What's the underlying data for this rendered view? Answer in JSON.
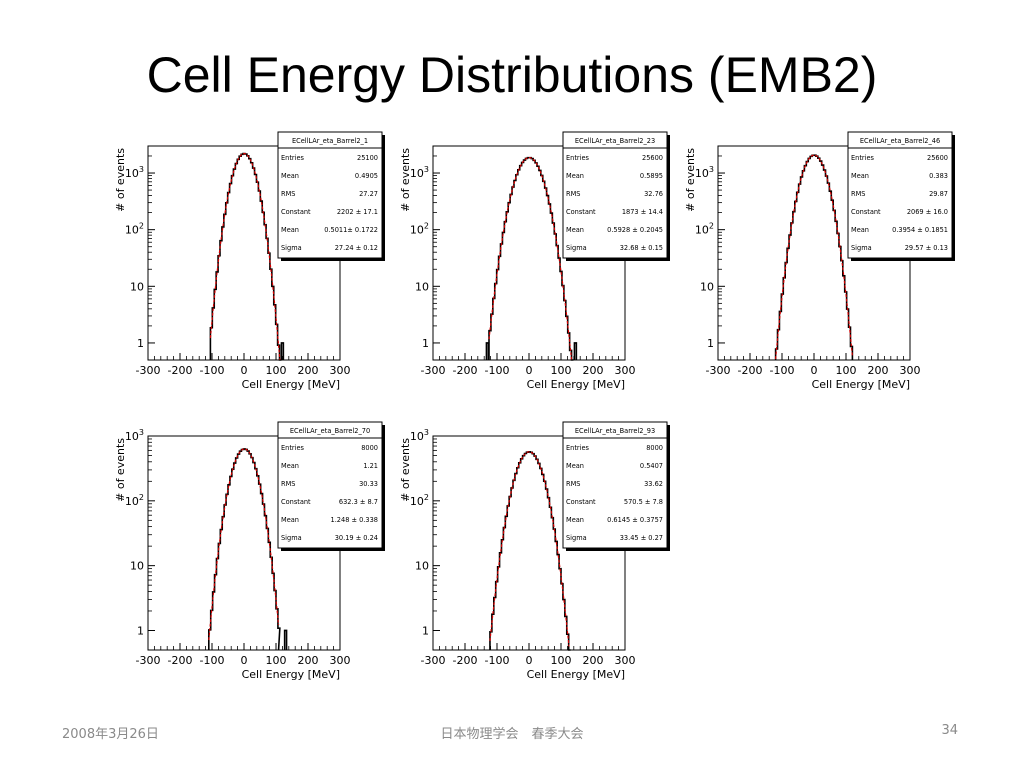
{
  "slide": {
    "title": "Cell Energy Distributions (EMB2)",
    "footer_date": "2008年3月26日",
    "footer_center": "日本物理学会　春季大会",
    "page_number": "34"
  },
  "chart_data": [
    {
      "type": "histogram",
      "xlabel": "Cell Energy [MeV]",
      "ylabel": "# of events",
      "yscale": "log",
      "xlim": [
        -300,
        300
      ],
      "ylim": [
        0.5,
        3000
      ],
      "xticks": [
        "-300",
        "-200",
        "-100",
        "0",
        "100",
        "200",
        "300"
      ],
      "yticks": [
        "1",
        "10",
        "10²",
        "10³"
      ],
      "stats": {
        "name": "ECellLAr_eta_Barrel2_1",
        "rows": [
          {
            "label": "Entries",
            "value": "25100"
          },
          {
            "label": "Mean",
            "value": "0.4905"
          },
          {
            "label": "RMS",
            "value": "27.27"
          },
          {
            "label": "Constant",
            "value": "2202 ± 17.1"
          },
          {
            "label": "Mean",
            "value": "0.5011± 0.1722"
          },
          {
            "label": "Sigma",
            "value": "27.24 ± 0.12"
          }
        ]
      },
      "fit": {
        "constant": 2202,
        "mean": 0.5011,
        "sigma": 27.24
      },
      "entries": 25100,
      "range": [
        -105,
        112
      ],
      "outliers": [
        {
          "x": 120,
          "count": 1
        }
      ]
    },
    {
      "type": "histogram",
      "xlabel": "Cell Energy [MeV]",
      "ylabel": "# of events",
      "yscale": "log",
      "xlim": [
        -300,
        300
      ],
      "ylim": [
        0.5,
        3000
      ],
      "xticks": [
        "-300",
        "-200",
        "-100",
        "0",
        "100",
        "200",
        "300"
      ],
      "yticks": [
        "1",
        "10",
        "10²",
        "10³"
      ],
      "stats": {
        "name": "ECellLAr_eta_Barrel2_23",
        "rows": [
          {
            "label": "Entries",
            "value": "25600"
          },
          {
            "label": "Mean",
            "value": "0.5895"
          },
          {
            "label": "RMS",
            "value": "32.76"
          },
          {
            "label": "Constant",
            "value": "1873 ± 14.4"
          },
          {
            "label": "Mean",
            "value": "0.5928 ± 0.2045"
          },
          {
            "label": "Sigma",
            "value": "32.68 ± 0.15"
          }
        ]
      },
      "fit": {
        "constant": 1873,
        "mean": 0.5928,
        "sigma": 32.68
      },
      "entries": 25600,
      "range": [
        -125,
        135
      ],
      "outliers": [
        {
          "x": -130,
          "count": 1
        },
        {
          "x": 145,
          "count": 1
        }
      ]
    },
    {
      "type": "histogram",
      "xlabel": "Cell Energy [MeV]",
      "ylabel": "# of events",
      "yscale": "log",
      "xlim": [
        -300,
        300
      ],
      "ylim": [
        0.5,
        3000
      ],
      "xticks": [
        "-300",
        "-200",
        "-100",
        "0",
        "100",
        "200",
        "300"
      ],
      "yticks": [
        "1",
        "10",
        "10²",
        "10³"
      ],
      "stats": {
        "name": "ECellLAr_eta_Barrel2_46",
        "rows": [
          {
            "label": "Entries",
            "value": "25600"
          },
          {
            "label": "Mean",
            "value": "0.383"
          },
          {
            "label": "RMS",
            "value": "29.87"
          },
          {
            "label": "Constant",
            "value": "2069 ± 16.0"
          },
          {
            "label": "Mean",
            "value": "0.3954 ± 0.1851"
          },
          {
            "label": "Sigma",
            "value": "29.57 ± 0.13"
          }
        ]
      },
      "fit": {
        "constant": 2069,
        "mean": 0.3954,
        "sigma": 29.57
      },
      "entries": 25600,
      "range": [
        -120,
        120
      ],
      "outliers": []
    },
    {
      "type": "histogram",
      "xlabel": "Cell Energy [MeV]",
      "ylabel": "# of events",
      "yscale": "log",
      "xlim": [
        -300,
        300
      ],
      "ylim": [
        0.5,
        1000
      ],
      "xticks": [
        "-300",
        "-200",
        "-100",
        "0",
        "100",
        "200",
        "300"
      ],
      "yticks": [
        "1",
        "10",
        "10²",
        "10³"
      ],
      "stats": {
        "name": "ECellLAr_eta_Barrel2_70",
        "rows": [
          {
            "label": "Entries",
            "value": "8000"
          },
          {
            "label": "Mean",
            "value": "1.21"
          },
          {
            "label": "RMS",
            "value": "30.33"
          },
          {
            "label": "Constant",
            "value": "632.3 ± 8.7"
          },
          {
            "label": "Mean",
            "value": "1.248 ± 0.338"
          },
          {
            "label": "Sigma",
            "value": "30.19 ± 0.24"
          }
        ]
      },
      "fit": {
        "constant": 632.3,
        "mean": 1.248,
        "sigma": 30.19
      },
      "entries": 8000,
      "range": [
        -110,
        108
      ],
      "outliers": [
        {
          "x": 130,
          "count": 1
        }
      ]
    },
    {
      "type": "histogram",
      "xlabel": "Cell Energy [MeV]",
      "ylabel": "# of events",
      "yscale": "log",
      "xlim": [
        -300,
        300
      ],
      "ylim": [
        0.5,
        1000
      ],
      "xticks": [
        "-300",
        "-200",
        "-100",
        "0",
        "100",
        "200",
        "300"
      ],
      "yticks": [
        "1",
        "10",
        "10²",
        "10³"
      ],
      "stats": {
        "name": "ECellLAr_eta_Barrel2_93",
        "rows": [
          {
            "label": "Entries",
            "value": "8000"
          },
          {
            "label": "Mean",
            "value": "0.5407"
          },
          {
            "label": "RMS",
            "value": "33.62"
          },
          {
            "label": "Constant",
            "value": "570.5 ± 7.8"
          },
          {
            "label": "Mean",
            "value": "0.6145 ± 0.3757"
          },
          {
            "label": "Sigma",
            "value": "33.45 ± 0.27"
          }
        ]
      },
      "fit": {
        "constant": 570.5,
        "mean": 0.6145,
        "sigma": 33.45
      },
      "entries": 8000,
      "range": [
        -122,
        125
      ],
      "outliers": []
    }
  ]
}
